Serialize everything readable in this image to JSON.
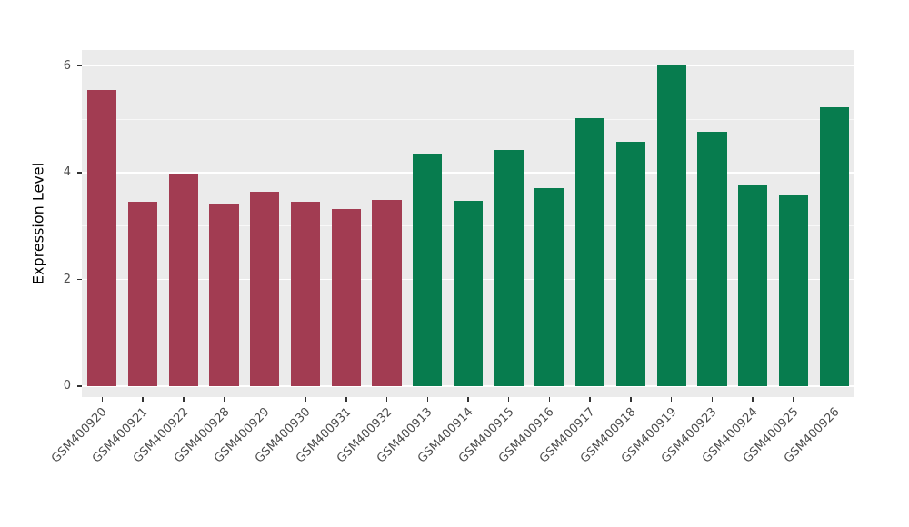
{
  "y_axis": {
    "label": "Expression Level",
    "major_tick_labels": [
      "0",
      "2",
      "4",
      "6"
    ],
    "major_values": [
      0,
      2,
      4,
      6
    ],
    "minor_values": [
      1,
      3,
      5
    ]
  },
  "chart_data": {
    "type": "bar",
    "title": "",
    "xlabel": "",
    "ylabel": "Expression Level",
    "ylim": [
      0,
      6.3
    ],
    "grid": "horizontal white major and minor lines on gray panel",
    "legend_position": "none",
    "panel_background": "#ebebeb",
    "figure_background": "#ffffff",
    "categories": [
      "GSM400920",
      "GSM400921",
      "GSM400922",
      "GSM400928",
      "GSM400929",
      "GSM400930",
      "GSM400931",
      "GSM400932",
      "GSM400913",
      "GSM400914",
      "GSM400915",
      "GSM400916",
      "GSM400917",
      "GSM400918",
      "GSM400919",
      "GSM400923",
      "GSM400924",
      "GSM400925",
      "GSM400926"
    ],
    "values": [
      5.55,
      3.45,
      3.98,
      3.43,
      3.65,
      3.45,
      3.32,
      3.5,
      4.35,
      3.47,
      4.42,
      3.72,
      5.03,
      4.58,
      6.02,
      4.77,
      3.76,
      3.57,
      5.22
    ],
    "groups": [
      "A",
      "A",
      "A",
      "A",
      "A",
      "A",
      "A",
      "A",
      "B",
      "B",
      "B",
      "B",
      "B",
      "B",
      "B",
      "B",
      "B",
      "B",
      "B"
    ],
    "group_colors": {
      "A": "#a23c52",
      "B": "#077c4e"
    }
  }
}
